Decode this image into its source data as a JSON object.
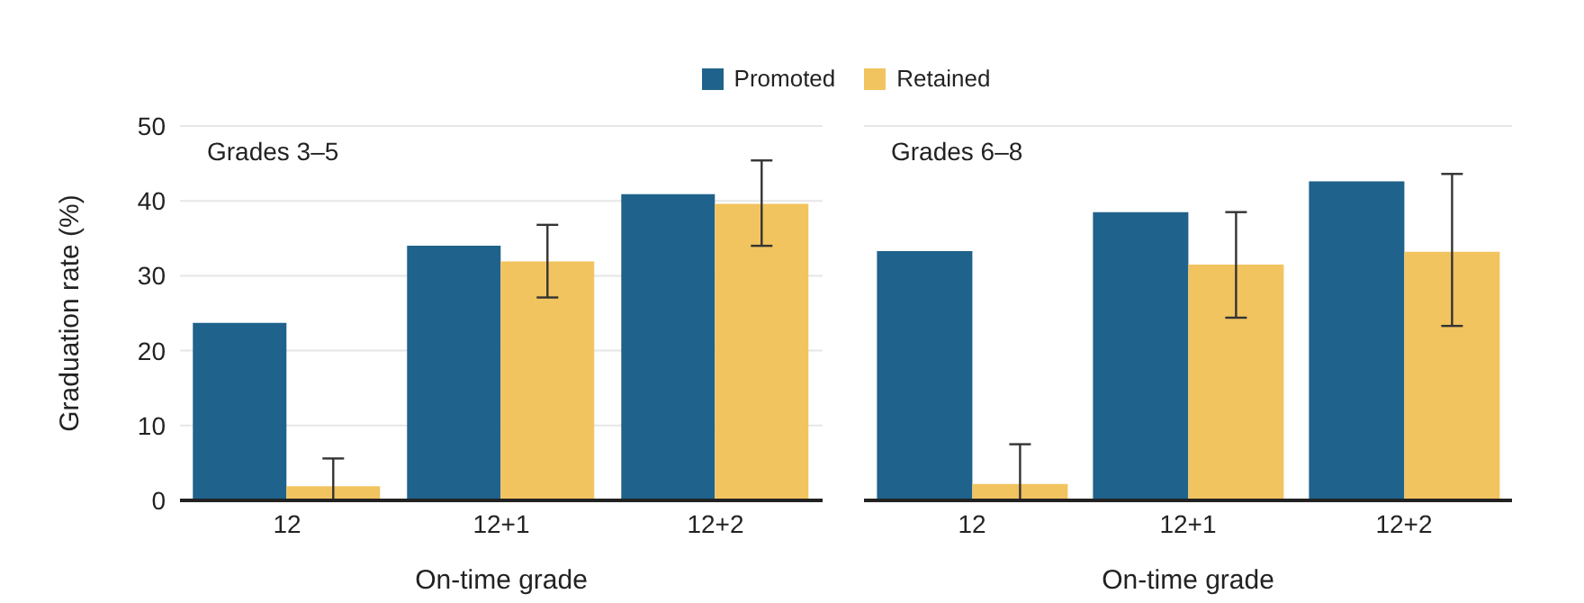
{
  "chart_data": [
    {
      "type": "bar",
      "title": "Grades 3–5",
      "xlabel": "On-time grade",
      "ylabel": "Graduation rate (%)",
      "categories": [
        "12",
        "12+1",
        "12+2"
      ],
      "series": [
        {
          "name": "Promoted",
          "color": "#1f628b",
          "values": [
            23.7,
            34.0,
            40.9
          ]
        },
        {
          "name": "Retained",
          "color": "#f2c45f",
          "values": [
            1.9,
            31.9,
            39.6
          ],
          "errors": [
            [
              0,
              5.6
            ],
            [
              27.1,
              36.8
            ],
            [
              34.0,
              45.4
            ]
          ]
        }
      ],
      "ylim": [
        0,
        50
      ],
      "yticks": [
        0,
        10,
        20,
        30,
        40,
        50
      ],
      "grid": "y",
      "legend": "top"
    },
    {
      "type": "bar",
      "title": "Grades 6–8",
      "xlabel": "On-time grade",
      "categories": [
        "12",
        "12+1",
        "12+2"
      ],
      "series": [
        {
          "color": "#1f628b",
          "values": [
            33.3,
            38.5,
            42.6
          ]
        },
        {
          "color": "#f2c45f",
          "values": [
            2.2,
            31.5,
            33.2
          ],
          "errors": [
            [
              0,
              7.5
            ],
            [
              24.4,
              38.5
            ],
            [
              23.3,
              43.6
            ]
          ]
        }
      ],
      "ylim": [
        0,
        50
      ],
      "yticks": [
        0,
        10,
        20,
        30,
        40,
        50
      ],
      "grid": "y",
      "tick_labels": "x"
    }
  ]
}
